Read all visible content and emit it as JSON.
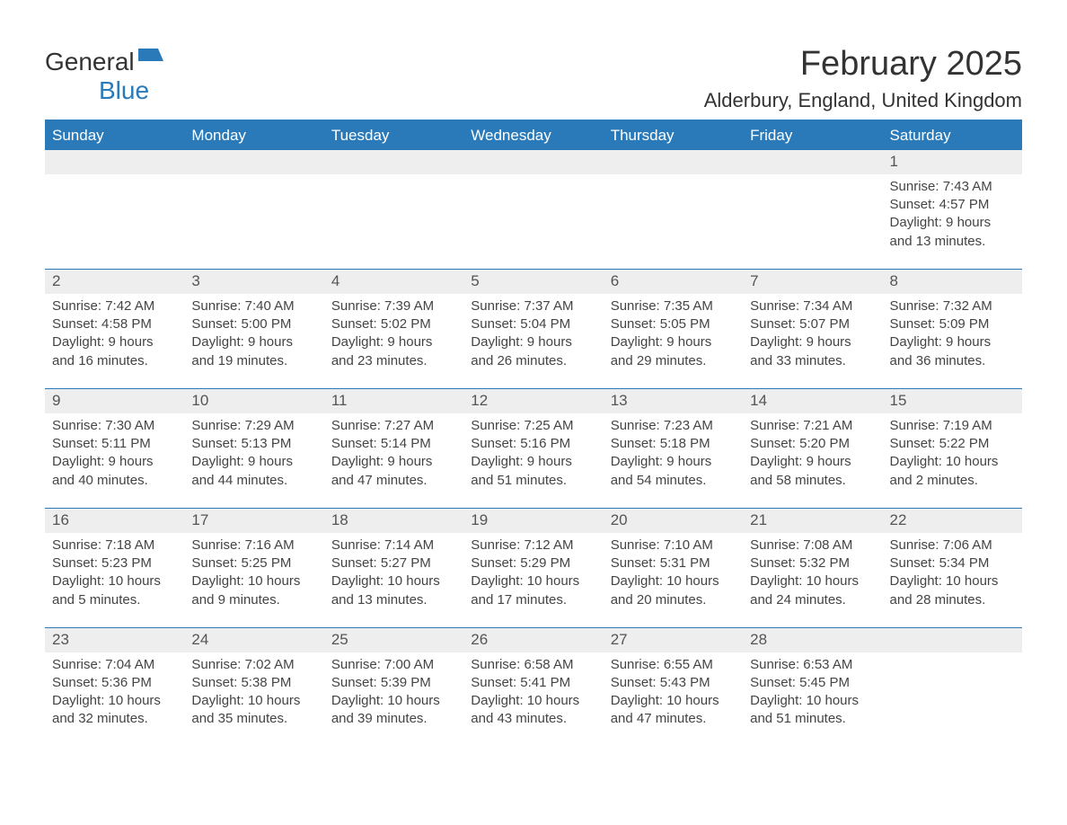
{
  "logo": {
    "word1": "General",
    "word2": "Blue"
  },
  "title": "February 2025",
  "location": "Alderbury, England, United Kingdom",
  "colors": {
    "accent": "#2a7ab9",
    "header_bg": "#2a7ab9",
    "header_text": "#ffffff",
    "daynum_bg": "#eeeeee",
    "text": "#444444",
    "page_bg": "#ffffff"
  },
  "typography": {
    "title_fontsize": 38,
    "location_fontsize": 22,
    "dayheader_fontsize": 17,
    "daynum_fontsize": 17,
    "body_fontsize": 15,
    "font_family": "Segoe UI"
  },
  "day_headers": [
    "Sunday",
    "Monday",
    "Tuesday",
    "Wednesday",
    "Thursday",
    "Friday",
    "Saturday"
  ],
  "weeks": [
    [
      null,
      null,
      null,
      null,
      null,
      null,
      {
        "d": "1",
        "sr": "Sunrise: 7:43 AM",
        "ss": "Sunset: 4:57 PM",
        "dl1": "Daylight: 9 hours",
        "dl2": "and 13 minutes."
      }
    ],
    [
      {
        "d": "2",
        "sr": "Sunrise: 7:42 AM",
        "ss": "Sunset: 4:58 PM",
        "dl1": "Daylight: 9 hours",
        "dl2": "and 16 minutes."
      },
      {
        "d": "3",
        "sr": "Sunrise: 7:40 AM",
        "ss": "Sunset: 5:00 PM",
        "dl1": "Daylight: 9 hours",
        "dl2": "and 19 minutes."
      },
      {
        "d": "4",
        "sr": "Sunrise: 7:39 AM",
        "ss": "Sunset: 5:02 PM",
        "dl1": "Daylight: 9 hours",
        "dl2": "and 23 minutes."
      },
      {
        "d": "5",
        "sr": "Sunrise: 7:37 AM",
        "ss": "Sunset: 5:04 PM",
        "dl1": "Daylight: 9 hours",
        "dl2": "and 26 minutes."
      },
      {
        "d": "6",
        "sr": "Sunrise: 7:35 AM",
        "ss": "Sunset: 5:05 PM",
        "dl1": "Daylight: 9 hours",
        "dl2": "and 29 minutes."
      },
      {
        "d": "7",
        "sr": "Sunrise: 7:34 AM",
        "ss": "Sunset: 5:07 PM",
        "dl1": "Daylight: 9 hours",
        "dl2": "and 33 minutes."
      },
      {
        "d": "8",
        "sr": "Sunrise: 7:32 AM",
        "ss": "Sunset: 5:09 PM",
        "dl1": "Daylight: 9 hours",
        "dl2": "and 36 minutes."
      }
    ],
    [
      {
        "d": "9",
        "sr": "Sunrise: 7:30 AM",
        "ss": "Sunset: 5:11 PM",
        "dl1": "Daylight: 9 hours",
        "dl2": "and 40 minutes."
      },
      {
        "d": "10",
        "sr": "Sunrise: 7:29 AM",
        "ss": "Sunset: 5:13 PM",
        "dl1": "Daylight: 9 hours",
        "dl2": "and 44 minutes."
      },
      {
        "d": "11",
        "sr": "Sunrise: 7:27 AM",
        "ss": "Sunset: 5:14 PM",
        "dl1": "Daylight: 9 hours",
        "dl2": "and 47 minutes."
      },
      {
        "d": "12",
        "sr": "Sunrise: 7:25 AM",
        "ss": "Sunset: 5:16 PM",
        "dl1": "Daylight: 9 hours",
        "dl2": "and 51 minutes."
      },
      {
        "d": "13",
        "sr": "Sunrise: 7:23 AM",
        "ss": "Sunset: 5:18 PM",
        "dl1": "Daylight: 9 hours",
        "dl2": "and 54 minutes."
      },
      {
        "d": "14",
        "sr": "Sunrise: 7:21 AM",
        "ss": "Sunset: 5:20 PM",
        "dl1": "Daylight: 9 hours",
        "dl2": "and 58 minutes."
      },
      {
        "d": "15",
        "sr": "Sunrise: 7:19 AM",
        "ss": "Sunset: 5:22 PM",
        "dl1": "Daylight: 10 hours",
        "dl2": "and 2 minutes."
      }
    ],
    [
      {
        "d": "16",
        "sr": "Sunrise: 7:18 AM",
        "ss": "Sunset: 5:23 PM",
        "dl1": "Daylight: 10 hours",
        "dl2": "and 5 minutes."
      },
      {
        "d": "17",
        "sr": "Sunrise: 7:16 AM",
        "ss": "Sunset: 5:25 PM",
        "dl1": "Daylight: 10 hours",
        "dl2": "and 9 minutes."
      },
      {
        "d": "18",
        "sr": "Sunrise: 7:14 AM",
        "ss": "Sunset: 5:27 PM",
        "dl1": "Daylight: 10 hours",
        "dl2": "and 13 minutes."
      },
      {
        "d": "19",
        "sr": "Sunrise: 7:12 AM",
        "ss": "Sunset: 5:29 PM",
        "dl1": "Daylight: 10 hours",
        "dl2": "and 17 minutes."
      },
      {
        "d": "20",
        "sr": "Sunrise: 7:10 AM",
        "ss": "Sunset: 5:31 PM",
        "dl1": "Daylight: 10 hours",
        "dl2": "and 20 minutes."
      },
      {
        "d": "21",
        "sr": "Sunrise: 7:08 AM",
        "ss": "Sunset: 5:32 PM",
        "dl1": "Daylight: 10 hours",
        "dl2": "and 24 minutes."
      },
      {
        "d": "22",
        "sr": "Sunrise: 7:06 AM",
        "ss": "Sunset: 5:34 PM",
        "dl1": "Daylight: 10 hours",
        "dl2": "and 28 minutes."
      }
    ],
    [
      {
        "d": "23",
        "sr": "Sunrise: 7:04 AM",
        "ss": "Sunset: 5:36 PM",
        "dl1": "Daylight: 10 hours",
        "dl2": "and 32 minutes."
      },
      {
        "d": "24",
        "sr": "Sunrise: 7:02 AM",
        "ss": "Sunset: 5:38 PM",
        "dl1": "Daylight: 10 hours",
        "dl2": "and 35 minutes."
      },
      {
        "d": "25",
        "sr": "Sunrise: 7:00 AM",
        "ss": "Sunset: 5:39 PM",
        "dl1": "Daylight: 10 hours",
        "dl2": "and 39 minutes."
      },
      {
        "d": "26",
        "sr": "Sunrise: 6:58 AM",
        "ss": "Sunset: 5:41 PM",
        "dl1": "Daylight: 10 hours",
        "dl2": "and 43 minutes."
      },
      {
        "d": "27",
        "sr": "Sunrise: 6:55 AM",
        "ss": "Sunset: 5:43 PM",
        "dl1": "Daylight: 10 hours",
        "dl2": "and 47 minutes."
      },
      {
        "d": "28",
        "sr": "Sunrise: 6:53 AM",
        "ss": "Sunset: 5:45 PM",
        "dl1": "Daylight: 10 hours",
        "dl2": "and 51 minutes."
      },
      null
    ]
  ]
}
